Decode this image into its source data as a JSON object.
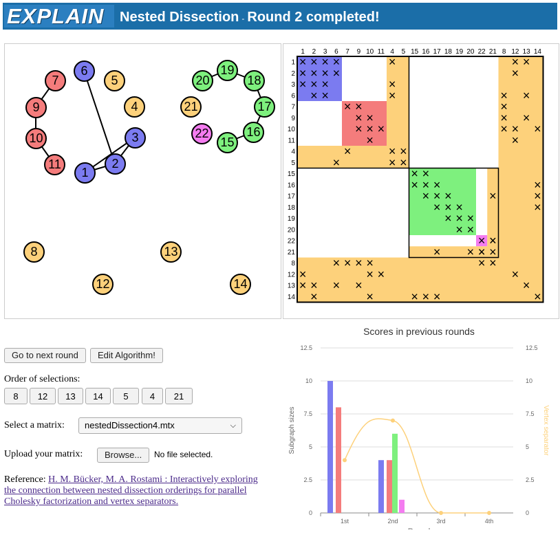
{
  "header": {
    "logo": "EXPLAIN",
    "app_title": "Nested Dissection",
    "separator": "-",
    "status": "Round 2 completed!"
  },
  "colors": {
    "blue": "#7b7bf0",
    "red": "#f47c7c",
    "green": "#7ef07e",
    "orange": "#fdd17b",
    "magenta": "#f47cf0"
  },
  "graph": {
    "nodes": [
      {
        "label": "7",
        "color": "#f47c7c"
      },
      {
        "label": "9",
        "color": "#f47c7c"
      },
      {
        "label": "10",
        "color": "#f47c7c"
      },
      {
        "label": "11",
        "color": "#f47c7c"
      },
      {
        "label": "6",
        "color": "#7b7bf0"
      },
      {
        "label": "3",
        "color": "#7b7bf0"
      },
      {
        "label": "2",
        "color": "#7b7bf0"
      },
      {
        "label": "1",
        "color": "#7b7bf0"
      },
      {
        "label": "5",
        "color": "#fdd17b"
      },
      {
        "label": "4",
        "color": "#fdd17b"
      },
      {
        "label": "21",
        "color": "#fdd17b"
      },
      {
        "label": "20",
        "color": "#7ef07e"
      },
      {
        "label": "19",
        "color": "#7ef07e"
      },
      {
        "label": "18",
        "color": "#7ef07e"
      },
      {
        "label": "17",
        "color": "#7ef07e"
      },
      {
        "label": "16",
        "color": "#7ef07e"
      },
      {
        "label": "15",
        "color": "#7ef07e"
      },
      {
        "label": "22",
        "color": "#f47cf0"
      },
      {
        "label": "8",
        "color": "#fdd17b"
      },
      {
        "label": "13",
        "color": "#fdd17b"
      },
      {
        "label": "12",
        "color": "#fdd17b"
      },
      {
        "label": "14",
        "color": "#fdd17b"
      }
    ]
  },
  "matrix": {
    "col_labels": [
      "1",
      "2",
      "3",
      "6",
      "7",
      "9",
      "10",
      "11",
      "4",
      "5",
      "15",
      "16",
      "17",
      "18",
      "19",
      "20",
      "22",
      "21",
      "8",
      "12",
      "13",
      "14"
    ],
    "row_labels": [
      "1",
      "2",
      "3",
      "6",
      "7",
      "9",
      "10",
      "11",
      "4",
      "5",
      "15",
      "16",
      "17",
      "18",
      "19",
      "20",
      "22",
      "21",
      "8",
      "12",
      "13",
      "14"
    ]
  },
  "controls": {
    "next_round": "Go to next round",
    "edit_algorithm": "Edit Algorithm!",
    "order_label": "Order of selections:",
    "order": [
      "8",
      "12",
      "13",
      "14",
      "5",
      "4",
      "21"
    ],
    "select_label": "Select a matrix:",
    "select_value": "nestedDissection4.mtx",
    "upload_label": "Upload your matrix:",
    "browse": "Browse...",
    "no_file": "No file selected.",
    "ref_prefix": "Reference:",
    "ref_link": "H. M. Bücker, M. A. Rostami : Interactively exploring the connection between nested dissection orderings for parallel Cholesky factorization and vertex separators."
  },
  "chart_data": {
    "type": "bar",
    "title": "Scores in previous rounds",
    "xlabel": "Round",
    "ylabel": "Subgraph sizes",
    "y2label": "Vertex separator",
    "categories": [
      "1st",
      "2nd",
      "3rd",
      "4th"
    ],
    "ylim": [
      0,
      12.5
    ],
    "yticks": [
      "0",
      "2.5",
      "5",
      "7.5",
      "10",
      "12.5"
    ],
    "series": [
      {
        "color": "#7b7bf0",
        "values": [
          10,
          4,
          0,
          0
        ]
      },
      {
        "color": "#f47c7c",
        "values": [
          8,
          4,
          0,
          0
        ]
      },
      {
        "color": "#7ef07e",
        "values": [
          0,
          6,
          0,
          0
        ]
      },
      {
        "color": "#f47cf0",
        "values": [
          0,
          1,
          0,
          0
        ]
      }
    ],
    "separator_line": {
      "color": "#fdd17b",
      "values": [
        4,
        7,
        0,
        0
      ]
    }
  }
}
